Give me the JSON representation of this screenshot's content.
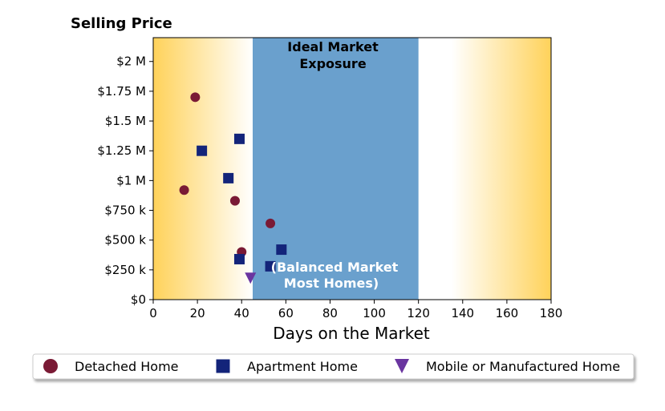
{
  "chart_data": {
    "type": "scatter",
    "title": "Selling Price",
    "xlabel": "Days on the Market",
    "xlim": [
      0,
      180
    ],
    "ylim": [
      0,
      2200000
    ],
    "xticks": [
      0,
      20,
      40,
      60,
      80,
      100,
      120,
      140,
      160,
      180
    ],
    "yticks": [
      {
        "value": 0,
        "label": "$0"
      },
      {
        "value": 250000,
        "label": "$250 k"
      },
      {
        "value": 500000,
        "label": "$500 k"
      },
      {
        "value": 750000,
        "label": "$750 k"
      },
      {
        "value": 1000000,
        "label": "$1 M"
      },
      {
        "value": 1250000,
        "label": "$1.25 M"
      },
      {
        "value": 1500000,
        "label": "$1.5 M"
      },
      {
        "value": 1750000,
        "label": "$1.75 M"
      },
      {
        "value": 2000000,
        "label": "$2 M"
      }
    ],
    "grid": false,
    "ideal_band": {
      "x_range": [
        45,
        120
      ],
      "color": "#6aa0cd",
      "label_top": [
        "Ideal Market",
        "Exposure"
      ],
      "label_bottom": [
        "(Balanced Market",
        "Most Homes)"
      ]
    },
    "background_gradient": {
      "edge_color": "#ffd25a",
      "center_color": "#ffffff"
    },
    "series": [
      {
        "name": "Detached Home",
        "marker": "circle",
        "color": "#7a1a35",
        "points": [
          [
            14,
            920000
          ],
          [
            19,
            1700000
          ],
          [
            37,
            830000
          ],
          [
            40,
            400000
          ],
          [
            53,
            640000
          ]
        ]
      },
      {
        "name": "Apartment Home",
        "marker": "square",
        "color": "#13247a",
        "points": [
          [
            22,
            1250000
          ],
          [
            34,
            1020000
          ],
          [
            39,
            1350000
          ],
          [
            39,
            340000
          ],
          [
            58,
            420000
          ],
          [
            53,
            280000
          ]
        ]
      },
      {
        "name": "Mobile or Manufactured Home",
        "marker": "triangle-down",
        "color": "#6a35a0",
        "points": [
          [
            44,
            180000
          ]
        ]
      }
    ],
    "legend": {
      "placement": "bottom"
    }
  }
}
